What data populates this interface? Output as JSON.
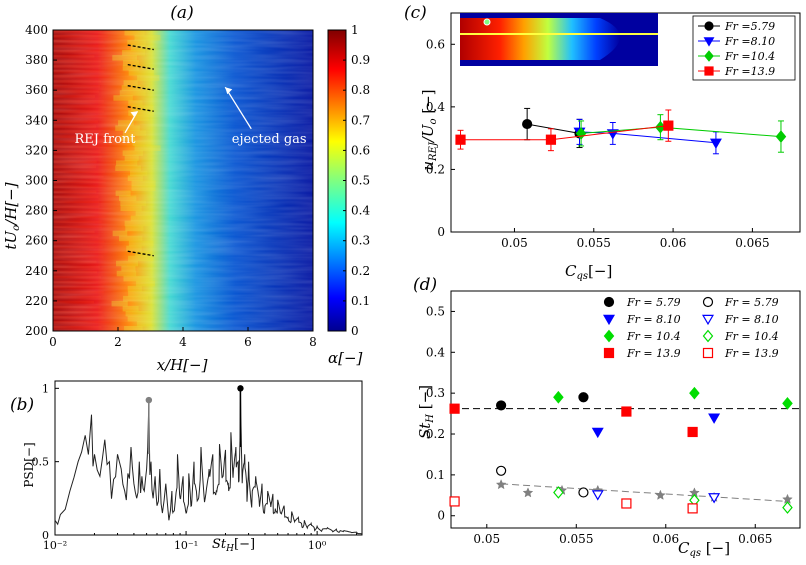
{
  "chart_data": [
    {
      "panel": "(a)",
      "type": "heatmap",
      "xlabel": "x/H[−]",
      "ylabel": "tU_o/H[−]",
      "xlim": [
        0,
        8
      ],
      "ylim": [
        200,
        400
      ],
      "xticks": [
        0,
        2,
        4,
        6,
        8
      ],
      "yticks": [
        200,
        220,
        240,
        260,
        280,
        300,
        320,
        340,
        360,
        380,
        400
      ],
      "colorbar": {
        "label": "α[−]",
        "ticks": [
          0,
          0.1,
          0.2,
          0.3,
          0.4,
          0.5,
          0.6,
          0.7,
          0.8,
          0.9,
          1
        ],
        "colormap": "jet"
      },
      "annotations": [
        {
          "text": "REJ front",
          "x": 1.6,
          "y": 333
        },
        {
          "text": "ejected gas",
          "x": 5.5,
          "y": 333
        }
      ],
      "front_markers": [
        {
          "x0": 2.3,
          "x1": 3.1,
          "y0": 390,
          "y1": 387
        },
        {
          "x0": 2.3,
          "x1": 3.1,
          "y0": 377,
          "y1": 374
        },
        {
          "x0": 2.3,
          "x1": 3.1,
          "y0": 363,
          "y1": 360
        },
        {
          "x0": 2.3,
          "x1": 3.1,
          "y0": 349,
          "y1": 346
        },
        {
          "x0": 2.3,
          "x1": 3.1,
          "y0": 253,
          "y1": 250
        }
      ]
    },
    {
      "panel": "(b)",
      "type": "line",
      "xlabel": "St_H[−]",
      "ylabel": "PSD[−]",
      "xscale": "log",
      "xlim": [
        0.01,
        2.2
      ],
      "ylim": [
        0,
        1.05
      ],
      "xticks": [
        0.01,
        0.1,
        1
      ],
      "xticklabels": [
        "10⁻²",
        "10⁻¹",
        "10⁰"
      ],
      "yticks": [
        0,
        0.5,
        1
      ],
      "peaks": [
        {
          "x": 0.052,
          "y": 0.92,
          "color": "#808080"
        },
        {
          "x": 0.26,
          "y": 1.0,
          "color": "#000000"
        }
      ],
      "x": [
        0.01,
        0.011,
        0.013,
        0.015,
        0.017,
        0.019,
        0.02,
        0.022,
        0.024,
        0.026,
        0.028,
        0.03,
        0.032,
        0.034,
        0.036,
        0.038,
        0.04,
        0.042,
        0.044,
        0.046,
        0.048,
        0.05,
        0.052,
        0.054,
        0.056,
        0.058,
        0.06,
        0.063,
        0.066,
        0.07,
        0.074,
        0.078,
        0.082,
        0.086,
        0.09,
        0.095,
        0.1,
        0.105,
        0.11,
        0.115,
        0.12,
        0.13,
        0.14,
        0.15,
        0.16,
        0.17,
        0.18,
        0.19,
        0.2,
        0.21,
        0.22,
        0.23,
        0.24,
        0.25,
        0.26,
        0.27,
        0.28,
        0.29,
        0.3,
        0.32,
        0.34,
        0.36,
        0.38,
        0.4,
        0.42,
        0.44,
        0.46,
        0.48,
        0.5,
        0.53,
        0.56,
        0.6,
        0.64,
        0.68,
        0.72,
        0.76,
        0.8,
        0.85,
        0.9,
        0.95,
        1.0,
        1.1,
        1.2,
        1.3,
        1.4,
        1.5,
        1.6,
        1.8,
        2.0,
        2.2
      ],
      "y": [
        0.1,
        0.14,
        0.3,
        0.5,
        0.68,
        0.82,
        0.55,
        0.4,
        0.65,
        0.5,
        0.38,
        0.55,
        0.45,
        0.3,
        0.42,
        0.6,
        0.35,
        0.25,
        0.5,
        0.4,
        0.3,
        0.45,
        0.9,
        0.5,
        0.25,
        0.4,
        0.2,
        0.45,
        0.15,
        0.35,
        0.1,
        0.3,
        0.2,
        0.55,
        0.25,
        0.4,
        0.15,
        0.42,
        0.2,
        0.5,
        0.3,
        0.6,
        0.25,
        0.45,
        0.55,
        0.3,
        0.62,
        0.4,
        0.58,
        0.35,
        0.7,
        0.45,
        0.6,
        0.5,
        1.0,
        0.42,
        0.55,
        0.35,
        0.5,
        0.3,
        0.4,
        0.25,
        0.35,
        0.2,
        0.3,
        0.22,
        0.28,
        0.18,
        0.24,
        0.15,
        0.2,
        0.12,
        0.16,
        0.1,
        0.12,
        0.08,
        0.1,
        0.06,
        0.08,
        0.05,
        0.06,
        0.04,
        0.05,
        0.03,
        0.04,
        0.03,
        0.03,
        0.02,
        0.02,
        0.01
      ]
    },
    {
      "panel": "(c)",
      "type": "line",
      "xlabel": "C_qs[−]",
      "ylabel": "u_REJ/U_o [−]",
      "xlim": [
        0.046,
        0.068
      ],
      "ylim": [
        0,
        0.7
      ],
      "xticks": [
        0.05,
        0.055,
        0.06,
        0.065
      ],
      "yticks": [
        0,
        0.2,
        0.4,
        0.6
      ],
      "legend_position": "top-right",
      "series": [
        {
          "name": "Fr =5.79",
          "color": "#000000",
          "marker": "circle",
          "x": [
            0.0508,
            0.0541
          ],
          "y": [
            0.345,
            0.315
          ],
          "err": [
            0.05,
            0.045
          ]
        },
        {
          "name": "Fr =8.10",
          "color": "#0000ff",
          "marker": "triangle-down",
          "x": [
            0.0541,
            0.0562,
            0.0627
          ],
          "y": [
            0.32,
            0.315,
            0.285
          ],
          "err": [
            0.04,
            0.035,
            0.035
          ]
        },
        {
          "name": "Fr =10.4",
          "color": "#00cc00",
          "marker": "diamond",
          "x": [
            0.0542,
            0.0592,
            0.0668
          ],
          "y": [
            0.315,
            0.335,
            0.305
          ],
          "err": [
            0.04,
            0.04,
            0.05
          ]
        },
        {
          "name": "Fr =13.9",
          "color": "#ff0000",
          "marker": "square",
          "x": [
            0.0466,
            0.0523,
            0.0597
          ],
          "y": [
            0.295,
            0.295,
            0.34
          ],
          "err": [
            0.03,
            0.035,
            0.05
          ]
        }
      ]
    },
    {
      "panel": "(d)",
      "type": "scatter",
      "xlabel": "C_qs [−]",
      "ylabel": "St_H [−]",
      "xlim": [
        0.048,
        0.0675
      ],
      "ylim": [
        -0.03,
        0.55
      ],
      "xticks": [
        0.05,
        0.055,
        0.06,
        0.065
      ],
      "yticks": [
        0,
        0.1,
        0.2,
        0.3,
        0.4,
        0.5
      ],
      "legend_position": "top",
      "filled_series": [
        {
          "name": "Fr = 5.79",
          "color": "#000000",
          "marker": "circle",
          "x": [
            0.0508,
            0.0554
          ],
          "y": [
            0.27,
            0.29
          ]
        },
        {
          "name": "Fr = 8.10",
          "color": "#0000ff",
          "marker": "triangle-down",
          "x": [
            0.0562,
            0.0627
          ],
          "y": [
            0.205,
            0.24
          ]
        },
        {
          "name": "Fr = 10.4",
          "color": "#00dd00",
          "marker": "diamond",
          "x": [
            0.054,
            0.0616,
            0.0668
          ],
          "y": [
            0.29,
            0.3,
            0.275
          ]
        },
        {
          "name": "Fr = 13.9",
          "color": "#ff0000",
          "marker": "square",
          "x": [
            0.0482,
            0.0578,
            0.0615
          ],
          "y": [
            0.262,
            0.255,
            0.205
          ]
        }
      ],
      "open_series": [
        {
          "name": "Fr = 5.79",
          "color": "#000000",
          "marker": "circle",
          "x": [
            0.0508,
            0.0554
          ],
          "y": [
            0.11,
            0.057
          ]
        },
        {
          "name": "Fr = 8.10",
          "color": "#0000ff",
          "marker": "triangle-down",
          "x": [
            0.0562,
            0.0627
          ],
          "y": [
            0.052,
            0.045
          ]
        },
        {
          "name": "Fr = 10.4",
          "color": "#00dd00",
          "marker": "diamond",
          "x": [
            0.054,
            0.0616,
            0.0668
          ],
          "y": [
            0.057,
            0.038,
            0.02
          ]
        },
        {
          "name": "Fr = 13.9",
          "color": "#ff0000",
          "marker": "square",
          "x": [
            0.0482,
            0.0578,
            0.0615
          ],
          "y": [
            0.035,
            0.03,
            0.018
          ]
        }
      ],
      "stars": {
        "color": "#808080",
        "x": [
          0.0508,
          0.0523,
          0.0542,
          0.0562,
          0.0597,
          0.0616,
          0.0627,
          0.0668
        ],
        "y": [
          0.076,
          0.056,
          0.062,
          0.062,
          0.05,
          0.056,
          0.045,
          0.04
        ]
      },
      "dashed_lines": [
        {
          "color": "#000000",
          "x": [
            0.048,
            0.0675
          ],
          "y": [
            0.262,
            0.262
          ]
        },
        {
          "color": "#808080",
          "x": [
            0.0508,
            0.0668
          ],
          "y": [
            0.078,
            0.035
          ]
        }
      ]
    }
  ]
}
